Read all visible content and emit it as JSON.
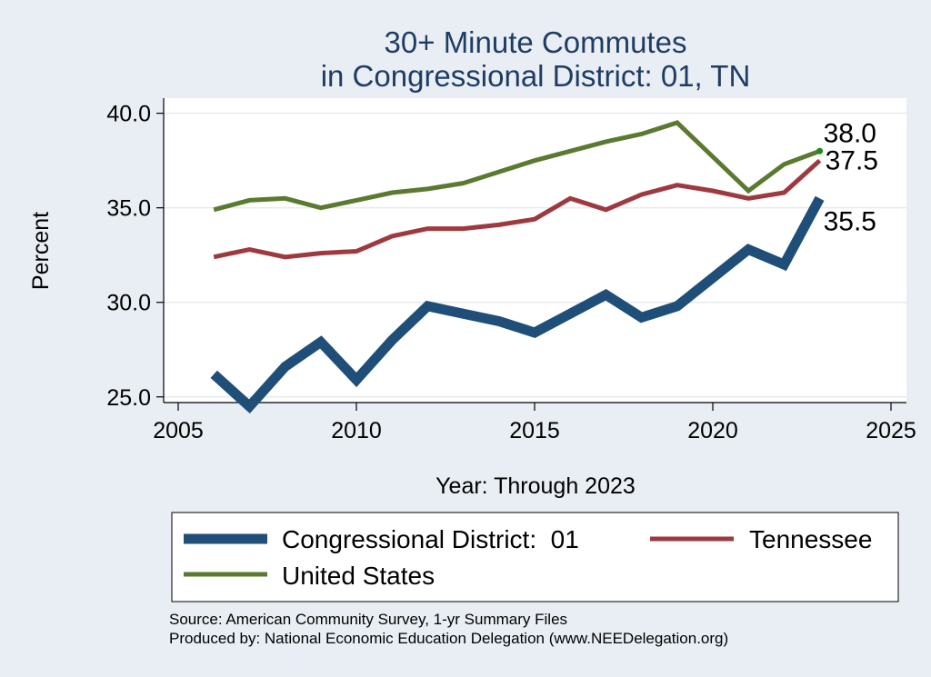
{
  "chart_data": {
    "type": "line",
    "title": "30+ Minute Commutes",
    "subtitle": "in Congressional District:  01, TN",
    "xlabel": "Year: Through 2023",
    "ylabel": "Percent",
    "xlim": [
      2005,
      2025
    ],
    "ylim": [
      24.7,
      40.8
    ],
    "xticks": [
      2005,
      2010,
      2015,
      2020,
      2025
    ],
    "yticks": [
      25.0,
      30.0,
      35.0,
      40.0
    ],
    "ytick_labels": [
      "25.0",
      "30.0",
      "35.0",
      "40.0"
    ],
    "grid": true,
    "legend_position": "bottom",
    "series": [
      {
        "name": "Congressional District:  01",
        "color": "#1f4e79",
        "end_label": "35.5",
        "x": [
          2006,
          2007,
          2008,
          2009,
          2010,
          2011,
          2012,
          2013,
          2014,
          2015,
          2016,
          2017,
          2018,
          2019,
          2020,
          2021,
          2022,
          2023
        ],
        "values": [
          26.2,
          24.5,
          26.6,
          27.9,
          25.9,
          28.0,
          29.8,
          29.4,
          29.0,
          28.4,
          29.4,
          30.4,
          29.2,
          29.8,
          31.3,
          32.8,
          32.0,
          35.5
        ]
      },
      {
        "name": "Tennessee",
        "color": "#9e3a3f",
        "end_label": "37.5",
        "x": [
          2006,
          2007,
          2008,
          2009,
          2010,
          2011,
          2012,
          2013,
          2014,
          2015,
          2016,
          2017,
          2018,
          2019,
          2020,
          2021,
          2022,
          2023
        ],
        "values": [
          32.4,
          32.8,
          32.4,
          32.6,
          32.7,
          33.5,
          33.9,
          33.9,
          34.1,
          34.4,
          35.5,
          34.9,
          35.7,
          36.2,
          35.9,
          35.5,
          35.8,
          37.5
        ]
      },
      {
        "name": "United States",
        "color": "#5a7a30",
        "end_label": "38.0",
        "x": [
          2006,
          2007,
          2008,
          2009,
          2010,
          2011,
          2012,
          2013,
          2014,
          2015,
          2016,
          2017,
          2018,
          2019,
          2020,
          2021,
          2022,
          2023
        ],
        "values": [
          34.9,
          35.4,
          35.5,
          35.0,
          35.4,
          35.8,
          36.0,
          36.3,
          36.9,
          37.5,
          38.0,
          38.5,
          38.9,
          39.5,
          37.7,
          35.9,
          37.3,
          38.0
        ]
      }
    ],
    "source_line1": "Source: American Community Survey, 1-yr Summary Files",
    "source_line2": "Produced by: National Economic Education Delegation (www.NEEDelegation.org)"
  }
}
